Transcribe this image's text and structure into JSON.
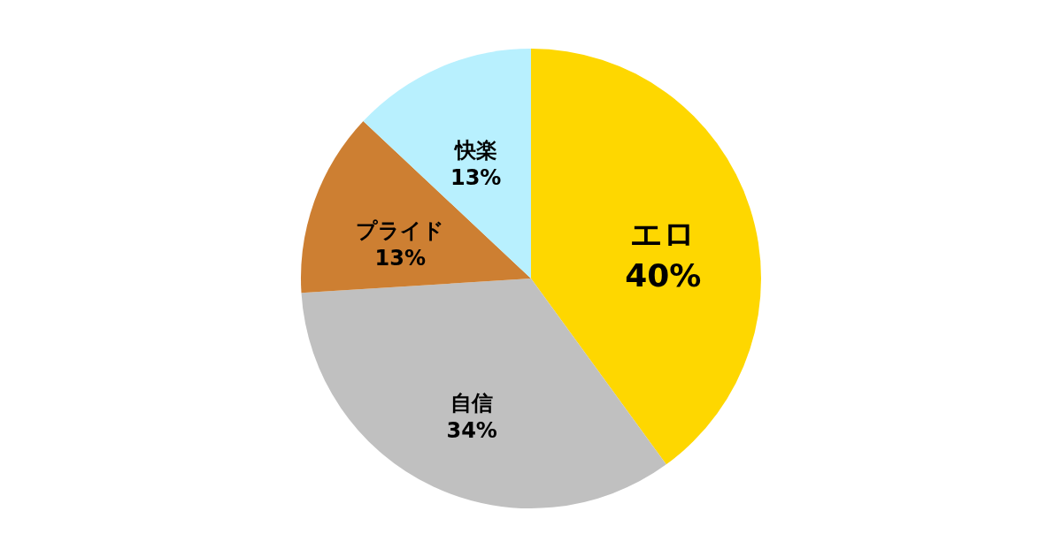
{
  "chart_data": {
    "type": "pie",
    "categories": [
      "エロ",
      "自信",
      "プライド",
      "快楽"
    ],
    "values": [
      40,
      34,
      13,
      13
    ],
    "colors": [
      "#fed700",
      "#c0c0c0",
      "#cd7f32",
      "#b8f0fe"
    ],
    "value_labels": [
      "40%",
      "34%",
      "13%",
      "13%"
    ]
  }
}
